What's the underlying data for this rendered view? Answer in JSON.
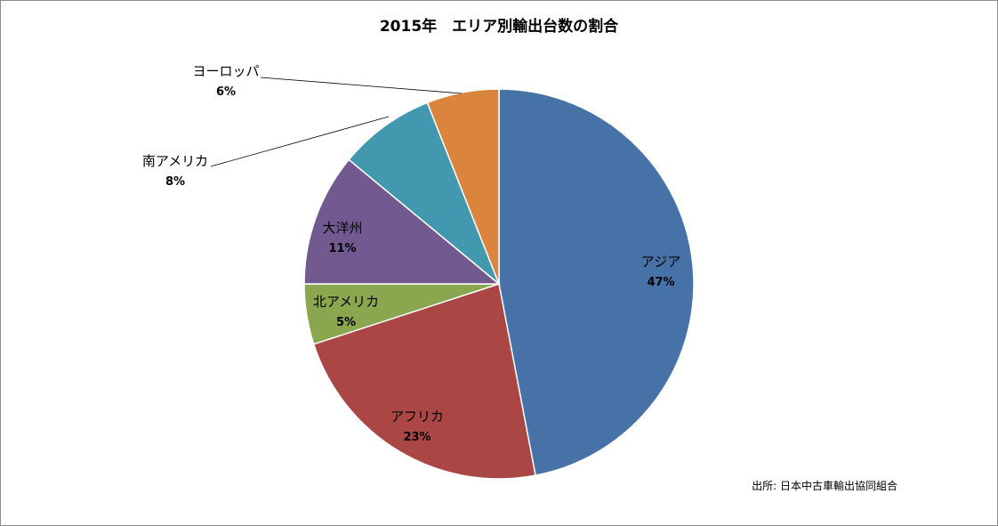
{
  "chart_data": {
    "type": "pie",
    "title": "2015年　エリア別輸出台数の割合",
    "slices": [
      {
        "name": "アジア",
        "value": 47,
        "label": "47%",
        "color": "#4672A8"
      },
      {
        "name": "アフリカ",
        "value": 23,
        "label": "23%",
        "color": "#AA4744"
      },
      {
        "name": "北アメリカ",
        "value": 5,
        "label": "5%",
        "color": "#8AA64F"
      },
      {
        "name": "大洋州",
        "value": 11,
        "label": "11%",
        "color": "#725990"
      },
      {
        "name": "南アメリカ",
        "value": 8,
        "label": "8%",
        "color": "#4298AF"
      },
      {
        "name": "ヨーロッパ",
        "value": 6,
        "label": "6%",
        "color": "#DB843D"
      }
    ],
    "start_angle": "12 o'clock",
    "direction": "clockwise",
    "legend": "none",
    "source": "出所: 日本中古車輸出協同組合"
  }
}
